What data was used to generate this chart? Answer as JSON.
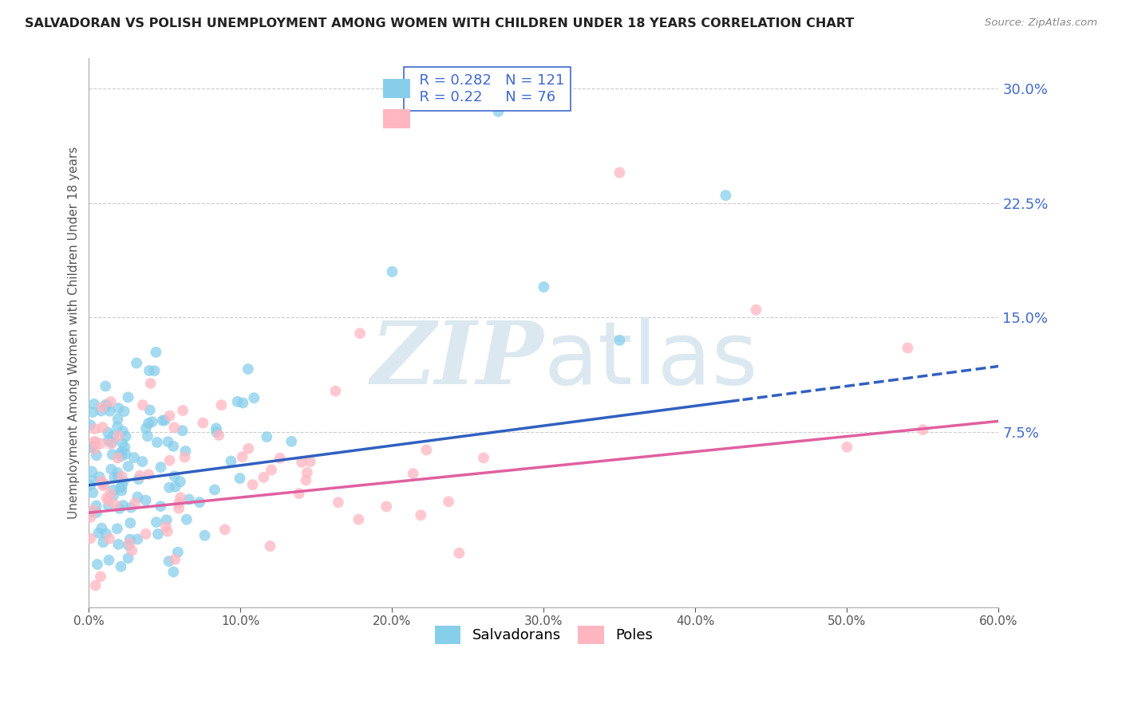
{
  "title": "SALVADORAN VS POLISH UNEMPLOYMENT AMONG WOMEN WITH CHILDREN UNDER 18 YEARS CORRELATION CHART",
  "source": "Source: ZipAtlas.com",
  "ylabel": "Unemployment Among Women with Children Under 18 years",
  "xlim": [
    0.0,
    0.6
  ],
  "ylim": [
    -0.04,
    0.32
  ],
  "xticks": [
    0.0,
    0.1,
    0.2,
    0.3,
    0.4,
    0.5,
    0.6
  ],
  "xticklabels": [
    "0.0%",
    "10.0%",
    "20.0%",
    "30.0%",
    "40.0%",
    "50.0%",
    "60.0%"
  ],
  "yticks_right": [
    0.075,
    0.15,
    0.225,
    0.3
  ],
  "yticklabels_right": [
    "7.5%",
    "15.0%",
    "22.5%",
    "30.0%"
  ],
  "salvadorans_color": "#87CEEB",
  "poles_color": "#FFB6C1",
  "trend_sal_color": "#3060C0",
  "trend_pol_color": "#E060A0",
  "R_salvadorans": 0.282,
  "N_salvadorans": 121,
  "R_poles": 0.22,
  "N_poles": 76,
  "background_color": "#ffffff",
  "grid_color": "#cccccc",
  "title_color": "#222222",
  "ylabel_color": "#555555",
  "right_tick_color": "#4169CD",
  "watermark_color": "#dce8f0",
  "seed": 7
}
